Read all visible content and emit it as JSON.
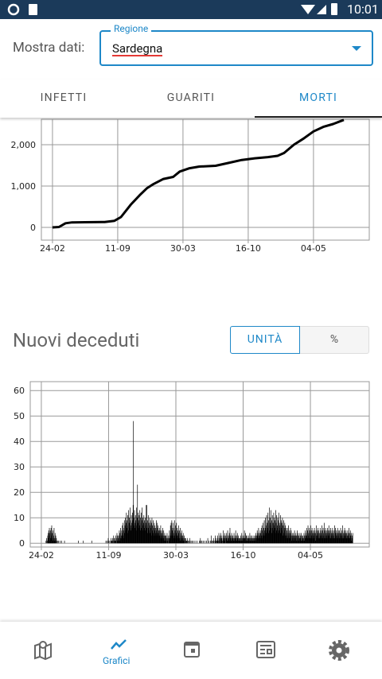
{
  "status_bar": {
    "time": "10:01"
  },
  "header": {
    "label": "Mostra dati:",
    "dropdown_label": "Regione",
    "dropdown_value": "Sardegna"
  },
  "tabs": [
    "INFETTI",
    "GUARITI",
    "MORTI"
  ],
  "section_title": "Nuovi deceduti",
  "toggle": [
    "UNITÀ",
    "%"
  ],
  "bottom_nav": {
    "active_label": "Grafici"
  },
  "chart_data": [
    {
      "type": "line",
      "color": "#000000",
      "x": [
        0,
        20,
        40,
        60,
        100,
        160,
        190,
        210,
        240,
        270,
        290,
        310,
        340,
        370,
        390,
        420,
        450,
        500,
        540,
        580,
        620,
        660,
        690,
        710,
        740,
        770,
        800,
        830,
        860,
        893
      ],
      "values": [
        0,
        10,
        100,
        120,
        125,
        130,
        160,
        250,
        550,
        800,
        950,
        1050,
        1170,
        1220,
        1350,
        1430,
        1470,
        1490,
        1560,
        1630,
        1670,
        1700,
        1730,
        1800,
        2000,
        2150,
        2320,
        2430,
        2500,
        2600
      ],
      "xlim": [
        -34,
        971
      ],
      "ylim": [
        -308,
        2615
      ],
      "xticks": [
        {
          "value": 0,
          "label": "24-02"
        },
        {
          "value": 200,
          "label": "11-09"
        },
        {
          "value": 400,
          "label": "30-03"
        },
        {
          "value": 600,
          "label": "16-10"
        },
        {
          "value": 800,
          "label": "04-05"
        }
      ],
      "yticks": [
        0,
        {
          "value": 1000,
          "label": "1,000"
        },
        {
          "value": 2000,
          "label": "2,000"
        }
      ],
      "grid": true
    },
    {
      "type": "bar",
      "color": "#000000",
      "values": [
        0,
        0,
        0,
        0,
        0,
        0,
        0,
        0,
        0,
        0,
        0,
        0,
        0,
        0,
        1,
        0,
        2,
        0,
        1,
        3,
        4,
        2,
        5,
        3,
        6,
        1,
        4,
        5,
        2,
        6,
        3,
        7,
        2,
        4,
        1,
        5,
        2,
        3,
        6,
        1,
        2,
        4,
        1,
        3,
        0,
        2,
        1,
        0,
        1,
        0,
        0,
        1,
        0,
        0,
        0,
        0,
        1,
        0,
        0,
        0,
        0,
        1,
        0,
        0,
        0,
        0,
        0,
        0,
        0,
        1,
        0,
        0,
        0,
        0,
        0,
        0,
        0,
        0,
        0,
        0,
        0,
        0,
        0,
        0,
        0,
        0,
        0,
        0,
        0,
        0,
        0,
        0,
        0,
        0,
        0,
        0,
        0,
        0,
        0,
        0,
        0,
        0,
        0,
        0,
        0,
        0,
        0,
        0,
        0,
        0,
        1,
        0,
        0,
        0,
        0,
        0,
        0,
        0,
        0,
        0,
        0,
        0,
        0,
        0,
        0,
        1,
        0,
        0,
        0,
        0,
        0,
        0,
        0,
        0,
        0,
        0,
        0,
        0,
        0,
        0,
        0,
        0,
        0,
        0,
        0,
        0,
        0,
        0,
        0,
        0,
        1,
        0,
        0,
        0,
        0,
        0,
        0,
        0,
        0,
        0,
        0,
        0,
        0,
        0,
        0,
        0,
        0,
        0,
        0,
        0,
        0,
        0,
        0,
        0,
        0,
        0,
        0,
        0,
        0,
        0,
        0,
        0,
        0,
        0,
        0,
        0,
        0,
        0,
        0,
        0,
        0,
        0,
        1,
        0,
        0,
        0,
        1,
        0,
        0,
        2,
        0,
        1,
        0,
        0,
        1,
        0,
        0,
        2,
        0,
        1,
        1,
        0,
        2,
        1,
        0,
        3,
        1,
        2,
        0,
        1,
        2,
        3,
        1,
        0,
        2,
        4,
        1,
        3,
        2,
        1,
        3,
        2,
        5,
        1,
        4,
        2,
        6,
        3,
        2,
        5,
        4,
        7,
        3,
        8,
        5,
        2,
        6,
        9,
        4,
        7,
        10,
        5,
        8,
        12,
        6,
        9,
        4,
        11,
        7,
        13,
        5,
        8,
        10,
        6,
        14,
        9,
        7,
        5,
        11,
        8,
        6,
        12,
        9,
        15,
        48,
        7,
        10,
        13,
        8,
        6,
        11,
        9,
        5,
        14,
        7,
        10,
        23,
        8,
        12,
        6,
        9,
        11,
        7,
        13,
        5,
        10,
        8,
        12,
        6,
        9,
        14,
        7,
        10,
        5,
        8,
        11,
        6,
        9,
        7,
        10,
        5,
        8,
        15,
        6,
        15,
        7,
        9,
        4,
        11,
        6,
        8,
        5,
        10,
        7,
        4,
        9,
        6,
        8,
        3,
        10,
        5,
        7,
        4,
        9,
        6,
        3,
        8,
        5,
        7,
        4,
        6,
        3,
        9,
        5,
        8,
        4,
        6,
        7,
        3,
        5,
        4,
        6,
        3,
        5,
        2,
        7,
        4,
        3,
        5,
        2,
        4,
        6,
        3,
        2,
        5,
        1,
        3,
        4,
        2,
        3,
        1,
        3,
        2,
        0,
        4,
        2,
        1,
        3,
        0,
        2,
        1,
        5,
        3,
        2,
        7,
        4,
        8,
        3,
        9,
        6,
        5,
        3,
        8,
        4,
        2,
        6,
        9,
        3,
        5,
        7,
        2,
        4,
        8,
        3,
        6,
        2,
        5,
        3,
        7,
        4,
        2,
        5,
        3,
        6,
        1,
        4,
        2,
        3,
        5,
        1,
        3,
        2,
        4,
        1,
        2,
        3,
        1,
        2,
        0,
        1,
        2,
        0,
        1,
        1,
        0,
        2,
        0,
        1,
        0,
        0,
        1,
        0,
        2,
        0,
        0,
        1,
        0,
        0,
        1,
        0,
        0,
        0,
        1,
        0,
        0,
        0,
        0,
        1,
        0,
        0,
        0,
        0,
        0,
        1,
        0,
        0,
        0,
        0,
        0,
        0,
        1,
        0,
        0,
        2,
        0,
        1,
        0,
        0,
        1,
        0,
        0,
        0,
        1,
        0,
        0,
        0,
        0,
        1,
        0,
        0,
        0,
        1,
        0,
        0,
        0,
        2,
        0,
        0,
        1,
        0,
        0,
        0,
        0,
        1,
        0,
        3,
        0,
        1,
        0,
        0,
        1,
        0,
        2,
        0,
        1,
        0,
        0,
        3,
        1,
        0,
        2,
        1,
        0,
        1,
        3,
        2,
        0,
        1,
        4,
        2,
        1,
        3,
        0,
        2,
        4,
        1,
        2,
        3,
        1,
        0,
        2,
        5,
        1,
        3,
        2,
        4,
        1,
        2,
        3,
        0,
        2,
        4,
        1,
        3,
        5,
        2,
        1,
        3,
        2,
        4,
        1,
        6,
        2,
        3,
        1,
        2,
        4,
        3,
        1,
        2,
        3,
        1,
        2,
        4,
        2,
        1,
        3,
        2,
        5,
        1,
        2,
        3,
        1,
        4,
        2,
        1,
        3,
        2,
        1,
        2,
        1,
        2,
        1,
        3,
        2,
        1,
        4,
        2,
        1,
        3,
        2,
        1,
        2,
        3,
        5,
        2,
        1,
        4,
        2,
        3,
        1,
        3,
        2,
        1,
        2,
        1,
        3,
        2,
        1,
        2,
        4,
        1,
        2,
        3,
        1,
        2,
        1,
        3,
        2,
        1,
        2,
        1,
        3,
        2,
        1,
        2,
        3,
        1,
        4,
        2,
        3,
        2,
        5,
        3,
        4,
        2,
        6,
        3,
        2,
        4,
        3,
        5,
        2,
        4,
        6,
        3,
        7,
        2,
        5,
        8,
        3,
        6,
        4,
        9,
        5,
        3,
        10,
        6,
        4,
        7,
        11,
        5,
        8,
        6,
        12,
        4,
        9,
        7,
        14,
        5,
        10,
        8,
        6,
        13,
        7,
        9,
        4,
        11,
        6,
        8,
        5,
        12,
        7,
        10,
        6,
        9,
        4,
        13,
        8,
        5,
        11,
        7,
        6,
        10,
        4,
        9,
        12,
        5,
        8,
        6,
        7,
        11,
        4,
        9,
        6,
        8,
        5,
        10,
        3,
        7,
        4,
        9,
        6,
        5,
        8,
        3,
        7,
        4,
        6,
        2,
        5,
        3,
        6,
        2,
        4,
        7,
        3,
        5,
        2,
        4,
        3,
        6,
        2,
        5,
        1,
        3,
        4,
        2,
        3,
        1,
        4,
        2,
        3,
        5,
        1,
        3,
        2,
        4,
        1,
        3,
        2,
        5,
        3,
        1,
        4,
        2,
        3,
        1,
        2,
        4,
        2,
        3,
        1,
        4,
        2,
        3,
        1,
        2,
        3,
        1,
        2,
        4,
        1,
        3,
        2,
        5,
        3,
        2,
        4,
        6,
        3,
        5,
        2,
        7,
        4,
        3,
        6,
        2,
        5,
        3,
        4,
        7,
        2,
        5,
        3,
        6,
        4,
        2,
        5,
        3,
        4,
        2,
        6,
        3,
        5,
        1,
        4,
        3,
        7,
        2,
        5,
        3,
        4,
        6,
        2,
        5,
        3,
        4,
        2,
        6,
        3,
        5,
        2,
        4,
        7,
        3,
        5,
        2,
        6,
        4,
        3,
        8,
        2,
        5,
        3,
        6,
        4,
        2,
        5,
        3,
        4,
        6,
        2,
        5,
        3,
        7,
        4,
        2,
        5,
        3,
        6,
        2,
        4,
        3,
        5,
        2,
        6,
        3,
        4,
        2,
        5,
        3,
        7,
        2,
        4,
        6,
        3,
        5,
        2,
        4,
        3,
        6,
        2,
        5,
        4,
        3,
        5,
        2,
        4,
        3,
        6,
        2,
        4,
        3,
        5,
        2,
        7,
        3,
        4,
        2,
        5,
        3,
        6,
        2,
        4,
        3,
        5,
        2,
        4,
        3,
        2,
        5,
        3,
        4,
        2,
        6,
        3,
        4,
        2,
        5,
        3,
        1,
        4,
        2,
        3,
        2,
        4
      ],
      "xlim": [
        -33,
        975
      ],
      "ylim": [
        -1.5,
        63.5
      ],
      "xticks": [
        {
          "value": 0,
          "label": "24-02"
        },
        {
          "value": 200,
          "label": "11-09"
        },
        {
          "value": 400,
          "label": "30-03"
        },
        {
          "value": 600,
          "label": "16-10"
        },
        {
          "value": 800,
          "label": "04-05"
        }
      ],
      "yticks": [
        0,
        10,
        20,
        30,
        40,
        50,
        60
      ],
      "grid": true
    }
  ]
}
